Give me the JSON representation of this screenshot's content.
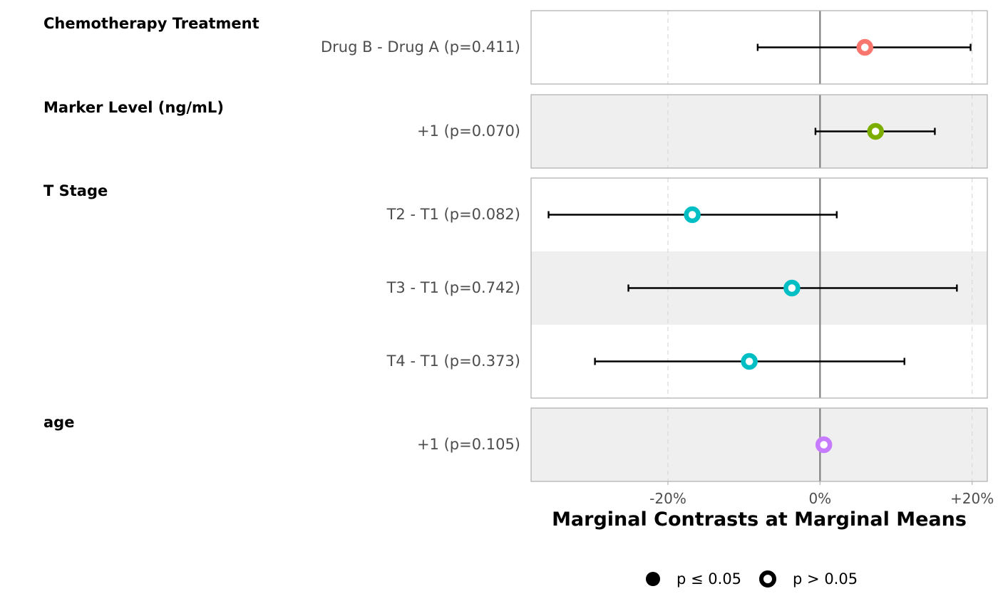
{
  "chart_data": {
    "type": "forest",
    "xlabel": "Marginal Contrasts at Marginal Means",
    "xlim": [
      -38,
      22
    ],
    "x_ticks": [
      -20,
      0,
      20
    ],
    "x_tick_labels": [
      "-20%",
      "0%",
      "+20%"
    ],
    "grid": true,
    "legend_placement": "bottom",
    "legend": [
      {
        "label": "p ≤ 0.05",
        "symbol": "filled-circle"
      },
      {
        "label": "p > 0.05",
        "symbol": "open-circle"
      }
    ],
    "groups": [
      {
        "title": "Chemotherapy Treatment",
        "color": "#F8766D",
        "rows": [
          {
            "label": "Drug B - Drug A (p=0.411)",
            "estimate": 5.9,
            "ci_low": -8.2,
            "ci_high": 19.8,
            "significant": false
          }
        ]
      },
      {
        "title": "Marker Level (ng/mL)",
        "color": "#7CAE00",
        "rows": [
          {
            "label": "+1 (p=0.070)",
            "estimate": 7.3,
            "ci_low": -0.6,
            "ci_high": 15.1,
            "significant": false
          }
        ]
      },
      {
        "title": "T Stage",
        "color": "#00BFC4",
        "rows": [
          {
            "label": "T2 - T1 (p=0.082)",
            "estimate": -16.8,
            "ci_low": -35.7,
            "ci_high": 2.2,
            "significant": false
          },
          {
            "label": "T3 - T1 (p=0.742)",
            "estimate": -3.7,
            "ci_low": -25.2,
            "ci_high": 18.0,
            "significant": false
          },
          {
            "label": "T4 - T1 (p=0.373)",
            "estimate": -9.3,
            "ci_low": -29.6,
            "ci_high": 11.1,
            "significant": false
          }
        ]
      },
      {
        "title": "age",
        "color": "#C77CFF",
        "rows": [
          {
            "label": "+1 (p=0.105)",
            "estimate": 0.5,
            "ci_low": 0.2,
            "ci_high": 0.8,
            "significant": false
          }
        ]
      }
    ]
  }
}
